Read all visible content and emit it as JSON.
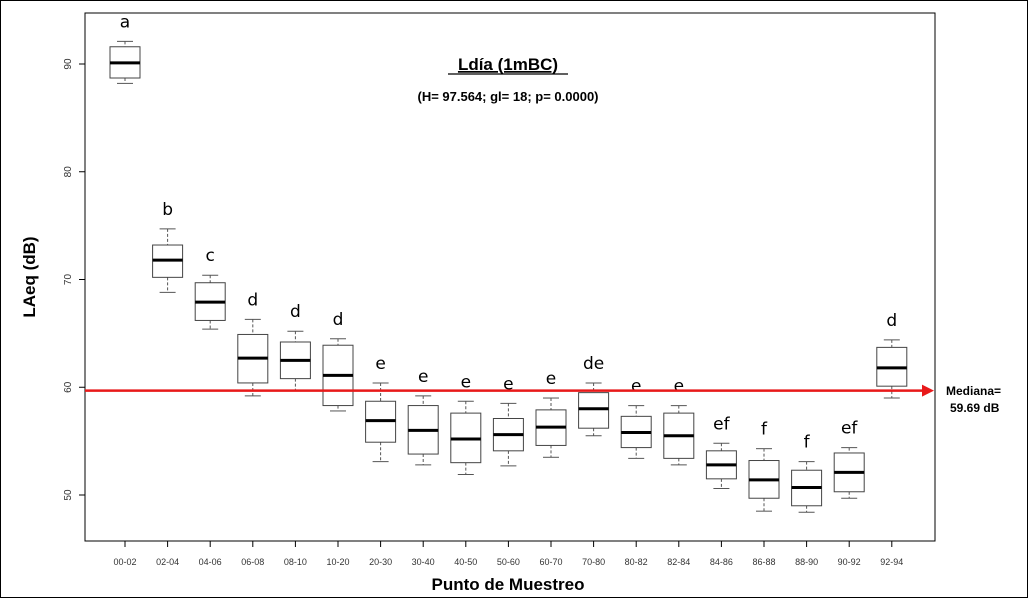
{
  "chart_data": {
    "type": "boxplot",
    "title": "Ldía (1mBC)",
    "subtitle": "(H= 97.564; gl= 18; p= 0.0000)",
    "xlabel": "Punto de Muestreo",
    "ylabel": "LAeq (dB)",
    "ylim": [
      45,
      93
    ],
    "yticks": [
      50,
      60,
      70,
      80,
      90
    ],
    "grid": false,
    "colors": {
      "box": "#ffffff",
      "median": "#000000",
      "whisker": "#555555",
      "reference": "#e8191a"
    },
    "reference_line": {
      "value": 59.69,
      "label_line1": "Mediana=",
      "label_line2": "59.69 dB"
    },
    "categories": [
      "00-02",
      "02-04",
      "04-06",
      "06-08",
      "08-10",
      "10-20",
      "20-30",
      "30-40",
      "40-50",
      "50-60",
      "60-70",
      "70-80",
      "80-82",
      "82-84",
      "84-86",
      "86-88",
      "88-90",
      "90-92",
      "92-94"
    ],
    "boxes": [
      {
        "min": 88.2,
        "q1": 88.7,
        "median": 90.1,
        "q3": 91.6,
        "max": 92.1,
        "group": "a"
      },
      {
        "min": 68.8,
        "q1": 70.2,
        "median": 71.8,
        "q3": 73.2,
        "max": 74.7,
        "group": "b"
      },
      {
        "min": 65.4,
        "q1": 66.2,
        "median": 67.9,
        "q3": 69.7,
        "max": 70.4,
        "group": "c"
      },
      {
        "min": 59.2,
        "q1": 60.4,
        "median": 62.7,
        "q3": 64.9,
        "max": 66.3,
        "group": "d"
      },
      {
        "min": 59.7,
        "q1": 60.8,
        "median": 62.5,
        "q3": 64.2,
        "max": 65.2,
        "group": "d"
      },
      {
        "min": 57.8,
        "q1": 58.3,
        "median": 61.1,
        "q3": 63.9,
        "max": 64.5,
        "group": "d"
      },
      {
        "min": 53.1,
        "q1": 54.9,
        "median": 56.9,
        "q3": 58.7,
        "max": 60.4,
        "group": "e"
      },
      {
        "min": 52.8,
        "q1": 53.8,
        "median": 56.0,
        "q3": 58.3,
        "max": 59.2,
        "group": "e"
      },
      {
        "min": 51.9,
        "q1": 53.0,
        "median": 55.2,
        "q3": 57.6,
        "max": 58.7,
        "group": "e"
      },
      {
        "min": 52.7,
        "q1": 54.1,
        "median": 55.6,
        "q3": 57.1,
        "max": 58.5,
        "group": "e"
      },
      {
        "min": 53.5,
        "q1": 54.6,
        "median": 56.3,
        "q3": 57.9,
        "max": 59.0,
        "group": "e"
      },
      {
        "min": 55.5,
        "q1": 56.2,
        "median": 58.0,
        "q3": 59.5,
        "max": 60.4,
        "group": "de"
      },
      {
        "min": 53.4,
        "q1": 54.4,
        "median": 55.8,
        "q3": 57.3,
        "max": 58.3,
        "group": "e"
      },
      {
        "min": 52.8,
        "q1": 53.4,
        "median": 55.5,
        "q3": 57.6,
        "max": 58.3,
        "group": "e"
      },
      {
        "min": 50.6,
        "q1": 51.5,
        "median": 52.8,
        "q3": 54.1,
        "max": 54.8,
        "group": "ef"
      },
      {
        "min": 48.5,
        "q1": 49.7,
        "median": 51.4,
        "q3": 53.2,
        "max": 54.3,
        "group": "f"
      },
      {
        "min": 48.4,
        "q1": 49.0,
        "median": 50.7,
        "q3": 52.3,
        "max": 53.1,
        "group": "f"
      },
      {
        "min": 49.7,
        "q1": 50.3,
        "median": 52.1,
        "q3": 53.9,
        "max": 54.4,
        "group": "ef"
      },
      {
        "min": 59.0,
        "q1": 60.1,
        "median": 61.8,
        "q3": 63.7,
        "max": 64.4,
        "group": "d"
      }
    ]
  }
}
